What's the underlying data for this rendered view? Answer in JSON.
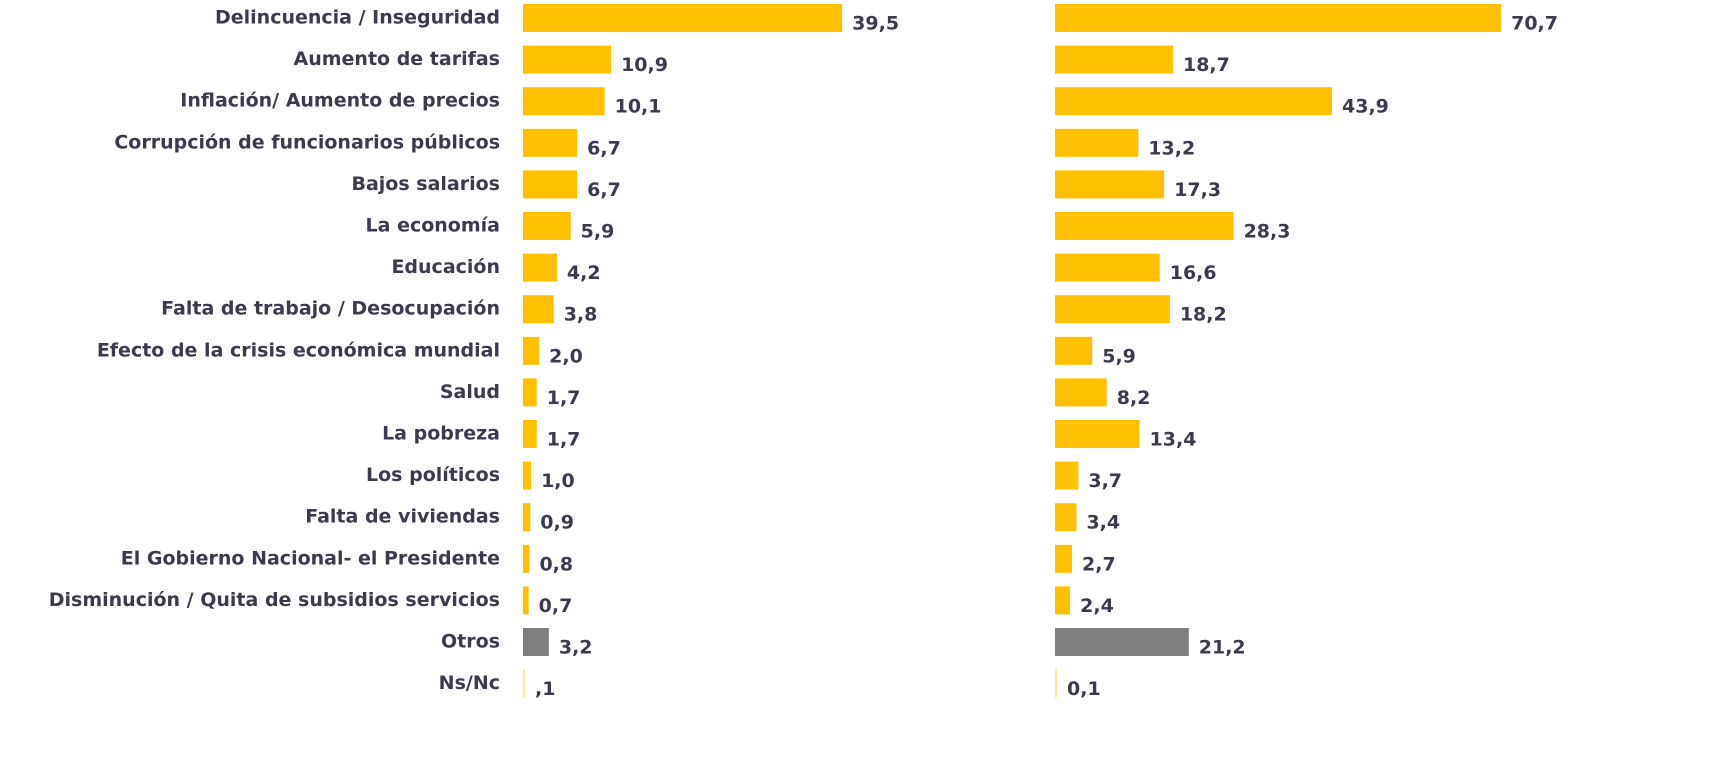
{
  "chart_data": {
    "type": "bar",
    "orientation": "horizontal",
    "categories": [
      "Delincuencia / Inseguridad",
      "Aumento de tarifas",
      "Inflación/ Aumento de precios",
      "Corrupción de funcionarios públicos",
      "Bajos salarios",
      "La economía",
      "Educación",
      "Falta de trabajo / Desocupación",
      "Efecto de la crisis económica mundial",
      "Salud",
      "La pobreza",
      "Los políticos",
      "Falta de viviendas",
      "El Gobierno Nacional- el Presidente",
      "Disminución / Quita de subsidios servicios",
      "Otros",
      "Ns/Nc"
    ],
    "xlim": [
      0,
      100
    ],
    "series": [
      {
        "values": [
          39.5,
          10.9,
          10.1,
          6.7,
          6.7,
          5.9,
          4.2,
          3.8,
          2.0,
          1.7,
          1.7,
          1.0,
          0.9,
          0.8,
          0.7,
          3.2,
          0.1
        ],
        "value_labels": [
          "39,5",
          "10,9",
          "10,1",
          "6,7",
          "6,7",
          "5,9",
          "4,2",
          "3,8",
          "2,0",
          "1,7",
          "1,7",
          "1,0",
          "0,9",
          "0,8",
          "0,7",
          "3,2",
          ",1"
        ],
        "colors": [
          "#ffc000",
          "#ffc000",
          "#ffc000",
          "#ffc000",
          "#ffc000",
          "#ffc000",
          "#ffc000",
          "#ffc000",
          "#ffc000",
          "#ffc000",
          "#ffc000",
          "#ffc000",
          "#ffc000",
          "#ffc000",
          "#ffc000",
          "#7f7f7f",
          "#ffe699"
        ]
      },
      {
        "values": [
          70.7,
          18.7,
          43.9,
          13.2,
          17.3,
          28.3,
          16.6,
          18.2,
          5.9,
          8.2,
          13.4,
          3.7,
          3.4,
          2.7,
          2.4,
          21.2,
          0.1
        ],
        "value_labels": [
          "70,7",
          "18,7",
          "43,9",
          "13,2",
          "17,3",
          "28,3",
          "16,6",
          "18,2",
          "5,9",
          "8,2",
          "13,4",
          "3,7",
          "3,4",
          "2,7",
          "2,4",
          "21,2",
          "0,1"
        ],
        "colors": [
          "#ffc000",
          "#ffc000",
          "#ffc000",
          "#ffc000",
          "#ffc000",
          "#ffc000",
          "#ffc000",
          "#ffc000",
          "#ffc000",
          "#ffc000",
          "#ffc000",
          "#ffc000",
          "#ffc000",
          "#ffc000",
          "#ffc000",
          "#7f7f7f",
          "#ffe699"
        ]
      }
    ]
  }
}
